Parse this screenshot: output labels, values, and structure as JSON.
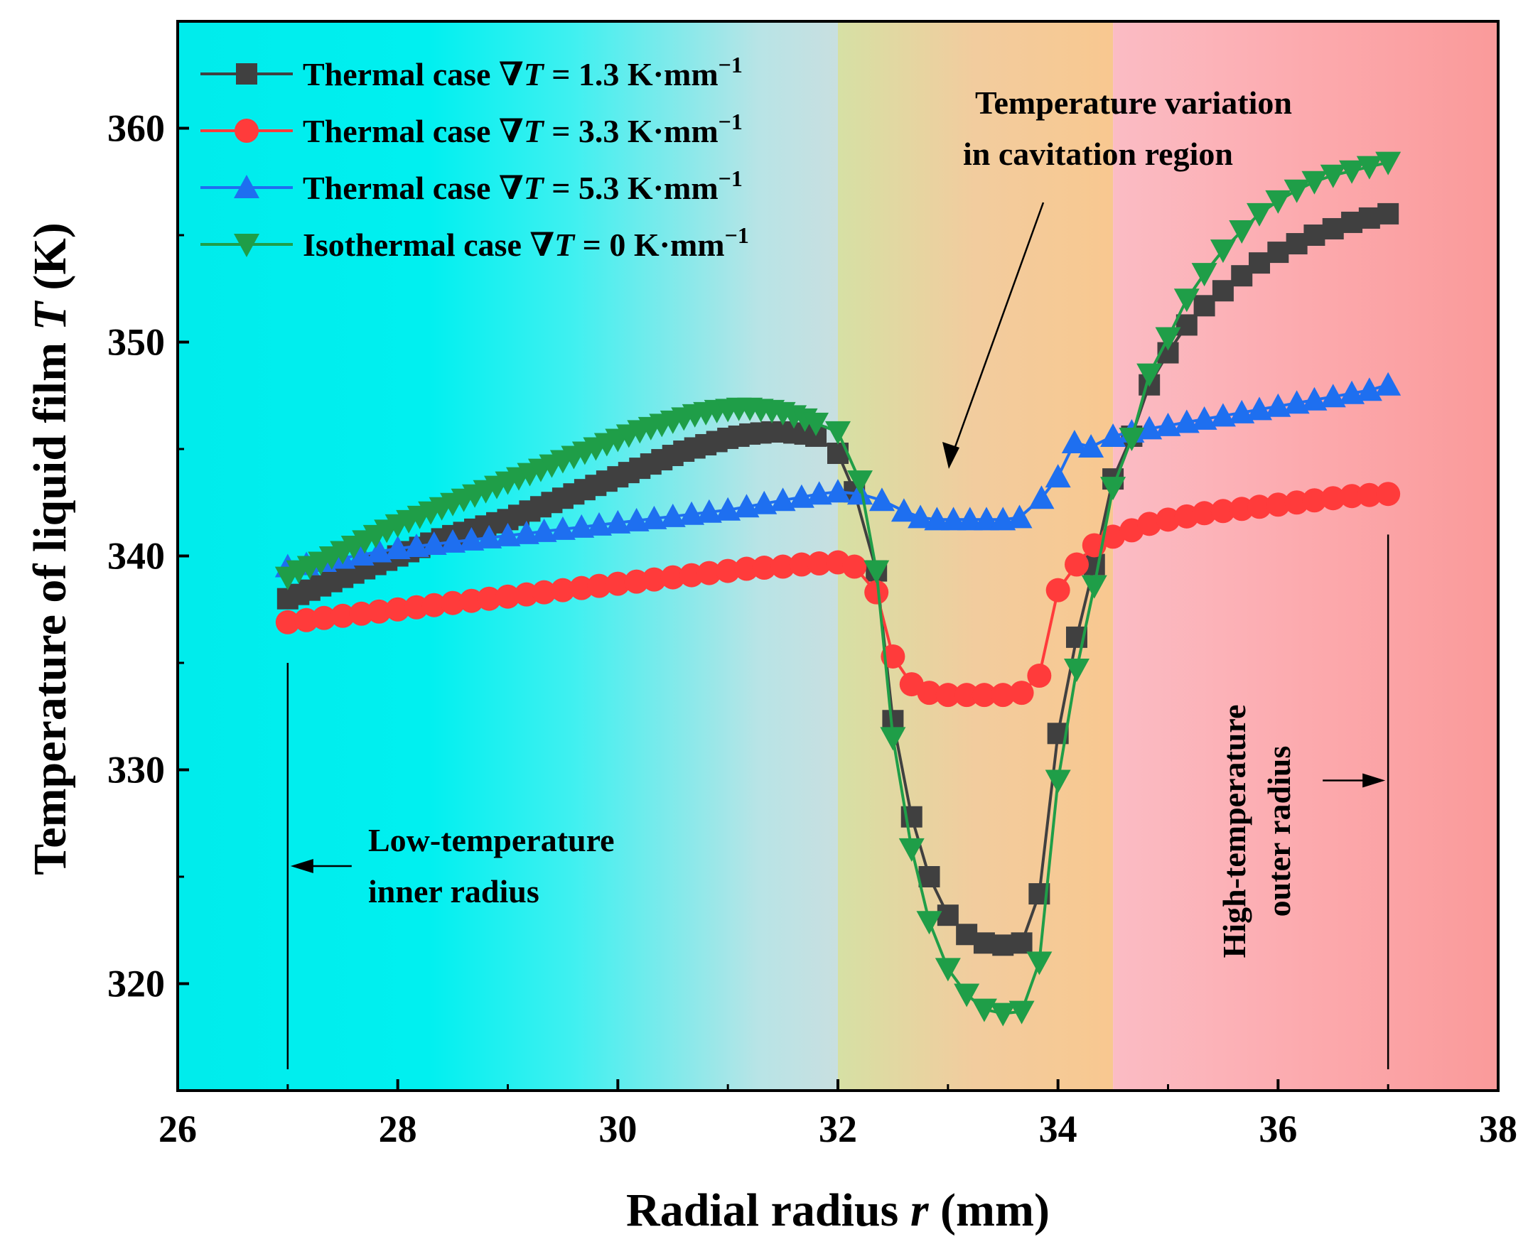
{
  "chart_data": {
    "type": "line",
    "xlabel": {
      "prefix": "Radial radius ",
      "var": "r",
      "suffix": " (mm)"
    },
    "ylabel": {
      "prefix": "Temperature of liquid film ",
      "var": "T",
      "suffix": " (K)"
    },
    "xlim": [
      26,
      38
    ],
    "ylim": [
      315,
      365
    ],
    "xticks": [
      26,
      28,
      30,
      32,
      34,
      36,
      38
    ],
    "yticks": [
      320,
      330,
      340,
      350,
      360
    ],
    "background_regions": [
      {
        "x0": 26,
        "x1": 32,
        "gradient": [
          "#00ecec",
          "#00f0f0",
          "#40f0f0",
          "#b8e4e6",
          "#c8dfe0"
        ]
      },
      {
        "x0": 32,
        "x1": 34.5,
        "gradient": [
          "#d6e0a4",
          "#f2cc9e",
          "#f8c890"
        ]
      },
      {
        "x0": 34.5,
        "x1": 38,
        "gradient": [
          "#fbbcc4",
          "#fcaaae",
          "#fa9a9a"
        ]
      }
    ],
    "legend": [
      {
        "prefix": "Thermal case ∇",
        "var": "T",
        "suffix": " = 1.3 K·mm",
        "sup": "−1"
      },
      {
        "prefix": "Thermal case ∇",
        "var": "T",
        "suffix": " = 3.3 K·mm",
        "sup": "−1"
      },
      {
        "prefix": "Thermal case ∇",
        "var": "T",
        "suffix": " = 5.3 K·mm",
        "sup": "−1"
      },
      {
        "prefix": "Isothermal case ∇",
        "var": "T",
        "suffix": " = 0 K·mm",
        "sup": "−1"
      }
    ],
    "series": [
      {
        "name": "Thermal case ∇T = 1.3 K·mm−1",
        "color": "#404040",
        "marker": "square",
        "x": [
          27.0,
          27.1,
          27.2,
          27.3,
          27.4,
          27.5,
          27.6,
          27.7,
          27.8,
          27.9,
          28.0,
          28.1,
          28.2,
          28.3,
          28.4,
          28.5,
          28.6,
          28.7,
          28.8,
          28.9,
          29.0,
          29.1,
          29.2,
          29.3,
          29.4,
          29.5,
          29.6,
          29.7,
          29.8,
          29.9,
          30.0,
          30.1,
          30.2,
          30.3,
          30.4,
          30.5,
          30.6,
          30.7,
          30.8,
          30.9,
          31.0,
          31.1,
          31.2,
          31.3,
          31.4,
          31.5,
          31.6,
          31.7,
          31.8,
          32.0,
          32.15,
          32.35,
          32.5,
          32.67,
          32.83,
          33.0,
          33.17,
          33.33,
          33.5,
          33.67,
          33.83,
          34.0,
          34.17,
          34.33,
          34.5,
          34.67,
          34.83,
          35.0,
          35.17,
          35.33,
          35.5,
          35.67,
          35.83,
          36.0,
          36.17,
          36.33,
          36.5,
          36.67,
          36.83,
          37.0
        ],
        "y": [
          338.0,
          338.2,
          338.4,
          338.6,
          338.8,
          339.0,
          339.2,
          339.4,
          339.6,
          339.8,
          340.0,
          340.2,
          340.4,
          340.6,
          340.8,
          340.95,
          341.1,
          341.25,
          341.4,
          341.55,
          341.7,
          341.9,
          342.1,
          342.3,
          342.5,
          342.7,
          342.9,
          343.1,
          343.3,
          343.5,
          343.7,
          343.9,
          344.1,
          344.3,
          344.5,
          344.7,
          344.9,
          345.05,
          345.2,
          345.35,
          345.5,
          345.6,
          345.7,
          345.75,
          345.8,
          345.8,
          345.75,
          345.7,
          345.6,
          344.8,
          343.0,
          339.3,
          332.3,
          327.8,
          325.0,
          323.2,
          322.3,
          321.9,
          321.8,
          321.9,
          324.2,
          331.7,
          336.2,
          339.6,
          343.6,
          345.6,
          348.0,
          349.5,
          350.8,
          351.7,
          352.4,
          353.1,
          353.7,
          354.2,
          354.6,
          355.0,
          355.3,
          355.6,
          355.8,
          356.0
        ]
      },
      {
        "name": "Thermal case ∇T = 3.3 K·mm−1",
        "color": "#ff3b3b",
        "marker": "circle",
        "x": [
          27.0,
          27.17,
          27.33,
          27.5,
          27.67,
          27.83,
          28.0,
          28.17,
          28.33,
          28.5,
          28.67,
          28.83,
          29.0,
          29.17,
          29.33,
          29.5,
          29.67,
          29.83,
          30.0,
          30.17,
          30.33,
          30.5,
          30.67,
          30.83,
          31.0,
          31.17,
          31.33,
          31.5,
          31.67,
          31.83,
          32.0,
          32.15,
          32.35,
          32.5,
          32.67,
          32.83,
          33.0,
          33.17,
          33.33,
          33.5,
          33.67,
          33.83,
          34.0,
          34.17,
          34.33,
          34.5,
          34.67,
          34.83,
          35.0,
          35.17,
          35.33,
          35.5,
          35.67,
          35.83,
          36.0,
          36.17,
          36.33,
          36.5,
          36.67,
          36.83,
          37.0
        ],
        "y": [
          336.9,
          337.0,
          337.1,
          337.2,
          337.3,
          337.4,
          337.5,
          337.6,
          337.7,
          337.8,
          337.9,
          338.0,
          338.1,
          338.2,
          338.3,
          338.4,
          338.5,
          338.6,
          338.7,
          338.8,
          338.9,
          339.0,
          339.1,
          339.2,
          339.3,
          339.4,
          339.45,
          339.5,
          339.6,
          339.65,
          339.7,
          339.5,
          338.3,
          335.3,
          334.0,
          333.6,
          333.5,
          333.5,
          333.5,
          333.5,
          333.6,
          334.4,
          338.4,
          339.6,
          340.5,
          340.9,
          341.2,
          341.5,
          341.7,
          341.85,
          342.0,
          342.1,
          342.2,
          342.3,
          342.4,
          342.5,
          342.6,
          342.7,
          342.8,
          342.85,
          342.9
        ]
      },
      {
        "name": "Thermal case ∇T = 5.3 K·mm−1",
        "color": "#1e6ff0",
        "marker": "triangle-up",
        "x": [
          27.0,
          27.17,
          27.33,
          27.5,
          27.67,
          27.83,
          28.0,
          28.17,
          28.33,
          28.5,
          28.67,
          28.83,
          29.0,
          29.17,
          29.33,
          29.5,
          29.67,
          29.83,
          30.0,
          30.17,
          30.33,
          30.5,
          30.67,
          30.83,
          31.0,
          31.17,
          31.33,
          31.5,
          31.67,
          31.83,
          32.0,
          32.2,
          32.4,
          32.6,
          32.75,
          32.9,
          33.05,
          33.2,
          33.35,
          33.5,
          33.65,
          33.85,
          34.0,
          34.15,
          34.3,
          34.5,
          34.67,
          34.83,
          35.0,
          35.17,
          35.33,
          35.5,
          35.67,
          35.83,
          36.0,
          36.17,
          36.33,
          36.5,
          36.67,
          36.83,
          37.0
        ],
        "y": [
          339.5,
          339.6,
          339.75,
          339.9,
          340.05,
          340.2,
          340.35,
          340.45,
          340.55,
          340.65,
          340.75,
          340.85,
          340.95,
          341.05,
          341.15,
          341.25,
          341.35,
          341.45,
          341.55,
          341.65,
          341.75,
          341.85,
          341.95,
          342.05,
          342.15,
          342.3,
          342.45,
          342.6,
          342.75,
          342.9,
          343.0,
          342.9,
          342.6,
          342.1,
          341.8,
          341.7,
          341.7,
          341.7,
          341.7,
          341.7,
          341.8,
          342.7,
          343.7,
          345.3,
          345.1,
          345.6,
          345.8,
          345.95,
          346.1,
          346.25,
          346.4,
          346.55,
          346.7,
          346.85,
          347.0,
          347.15,
          347.3,
          347.45,
          347.6,
          347.75,
          348.0
        ]
      },
      {
        "name": "Isothermal case ∇T = 0 K·mm−1",
        "color": "#1f9e48",
        "marker": "triangle-down",
        "x": [
          27.0,
          27.1,
          27.2,
          27.3,
          27.4,
          27.5,
          27.6,
          27.7,
          27.8,
          27.9,
          28.0,
          28.1,
          28.2,
          28.3,
          28.4,
          28.5,
          28.6,
          28.7,
          28.8,
          28.9,
          29.0,
          29.1,
          29.2,
          29.3,
          29.4,
          29.5,
          29.6,
          29.7,
          29.8,
          29.9,
          30.0,
          30.1,
          30.2,
          30.3,
          30.4,
          30.5,
          30.6,
          30.7,
          30.8,
          30.9,
          31.0,
          31.1,
          31.2,
          31.3,
          31.4,
          31.5,
          31.6,
          31.7,
          31.8,
          32.0,
          32.2,
          32.35,
          32.5,
          32.67,
          32.83,
          33.0,
          33.17,
          33.33,
          33.5,
          33.67,
          33.83,
          34.0,
          34.17,
          34.33,
          34.5,
          34.67,
          34.83,
          35.0,
          35.17,
          35.33,
          35.5,
          35.67,
          35.83,
          36.0,
          36.17,
          36.33,
          36.5,
          36.67,
          36.83,
          37.0
        ],
        "y": [
          339.0,
          339.3,
          339.5,
          339.7,
          339.95,
          340.2,
          340.45,
          340.7,
          340.95,
          341.2,
          341.45,
          341.65,
          341.85,
          342.05,
          342.25,
          342.45,
          342.65,
          342.85,
          343.05,
          343.25,
          343.45,
          343.65,
          343.85,
          344.05,
          344.25,
          344.45,
          344.65,
          344.85,
          345.05,
          345.25,
          345.45,
          345.65,
          345.85,
          346.0,
          346.15,
          346.3,
          346.45,
          346.6,
          346.7,
          346.8,
          346.85,
          346.9,
          346.9,
          346.85,
          346.8,
          346.7,
          346.55,
          346.4,
          346.2,
          345.8,
          343.5,
          339.3,
          331.5,
          326.3,
          322.9,
          320.7,
          319.5,
          318.8,
          318.6,
          318.7,
          321.0,
          329.5,
          334.7,
          338.6,
          343.2,
          345.5,
          348.5,
          350.2,
          352.0,
          353.2,
          354.3,
          355.2,
          356.0,
          356.6,
          357.1,
          357.5,
          357.8,
          358.0,
          358.2,
          358.4
        ]
      }
    ],
    "annotations": {
      "cavitation": [
        "Temperature variation",
        "in cavitation region"
      ],
      "low_temp": [
        "Low-temperature",
        "inner radius"
      ],
      "high_temp": [
        "High-temperature",
        "outer radius"
      ]
    }
  }
}
